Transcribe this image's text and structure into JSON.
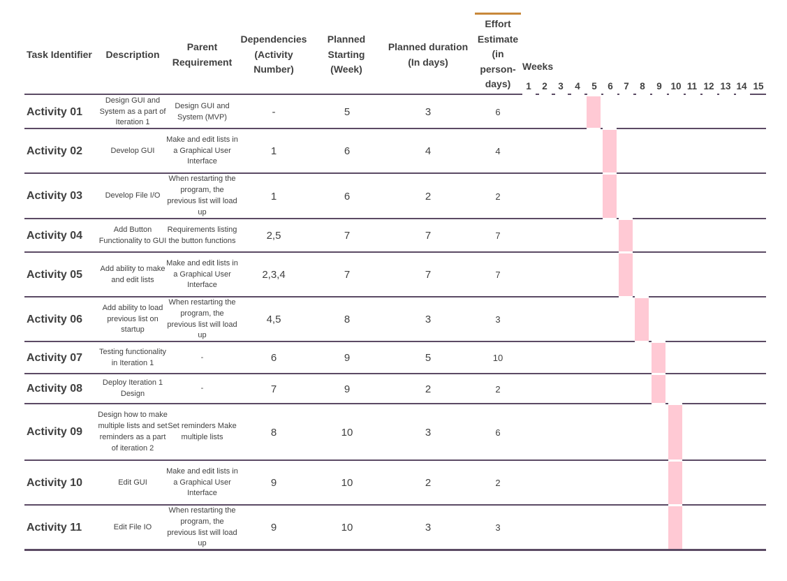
{
  "headers": {
    "task_identifier": "Task Identifier",
    "description": "Description",
    "parent_requirement": "Parent Requirement",
    "dependencies": "Dependencies (Activity Number)",
    "planned_start": "Planned Starting (Week)",
    "planned_duration": "Planned duration (In days)",
    "effort_estimate": "Effort Estimate (in person-days)",
    "weeks": "Weeks"
  },
  "week_numbers": [
    "1",
    "2",
    "3",
    "4",
    "5",
    "6",
    "7",
    "8",
    "9",
    "10",
    "11",
    "12",
    "13",
    "14",
    "15"
  ],
  "bar_color": "#ffc9d4",
  "line_color": "#5b4a64",
  "accent_color": "#c8883a",
  "activities": [
    {
      "id": "Activity 01",
      "description": "Design GUI and System as a part of Iteration 1",
      "parent": "Design GUI and System (MVP)",
      "dependencies": "-",
      "start": "5",
      "duration": "3",
      "effort": "6",
      "bar_week": 5
    },
    {
      "id": "Activity 02",
      "description": "Develop GUI",
      "parent": "Make and edit lists in a Graphical User Interface",
      "dependencies": "1",
      "start": "6",
      "duration": "4",
      "effort": "4",
      "bar_week": 6
    },
    {
      "id": "Activity 03",
      "description": "Develop File I/O",
      "parent": "When restarting the program, the previous list will load up",
      "dependencies": "1",
      "start": "6",
      "duration": "2",
      "effort": "2",
      "bar_week": 6
    },
    {
      "id": "Activity 04",
      "description": "Add Button Functionality to GUI",
      "parent": "Requirements listing the button functions",
      "dependencies": "2,5",
      "start": "7",
      "duration": "7",
      "effort": "7",
      "bar_week": 7
    },
    {
      "id": "Activity 05",
      "description": "Add ability to make and edit lists",
      "parent": "Make and edit lists in a Graphical User Interface",
      "dependencies": "2,3,4",
      "start": "7",
      "duration": "7",
      "effort": "7",
      "bar_week": 7
    },
    {
      "id": "Activity 06",
      "description": "Add ability to load previous list on startup",
      "parent": "When restarting the program, the previous list will load up",
      "dependencies": "4,5",
      "start": "8",
      "duration": "3",
      "effort": "3",
      "bar_week": 8
    },
    {
      "id": "Activity 07",
      "description": "Testing functionality in Iteration 1",
      "parent": "-",
      "dependencies": "6",
      "start": "9",
      "duration": "5",
      "effort": "10",
      "bar_week": 9
    },
    {
      "id": "Activity 08",
      "description": "Deploy Iteration 1 Design",
      "parent": "-",
      "dependencies": "7",
      "start": "9",
      "duration": "2",
      "effort": "2",
      "bar_week": 9
    },
    {
      "id": "Activity 09",
      "description": "Design how to make multiple lists and set reminders as a part of iteration 2",
      "parent": "Set reminders Make multiple lists",
      "dependencies": "8",
      "start": "10",
      "duration": "3",
      "effort": "6",
      "bar_week": 10
    },
    {
      "id": "Activity 10",
      "description": "Edit GUI",
      "parent": "Make and edit lists in a Graphical User Interface",
      "dependencies": "9",
      "start": "10",
      "duration": "2",
      "effort": "2",
      "bar_week": 10
    },
    {
      "id": "Activity 11",
      "description": "Edit File IO",
      "parent": "When restarting the program, the previous list will load up",
      "dependencies": "9",
      "start": "10",
      "duration": "3",
      "effort": "3",
      "bar_week": 10
    }
  ]
}
